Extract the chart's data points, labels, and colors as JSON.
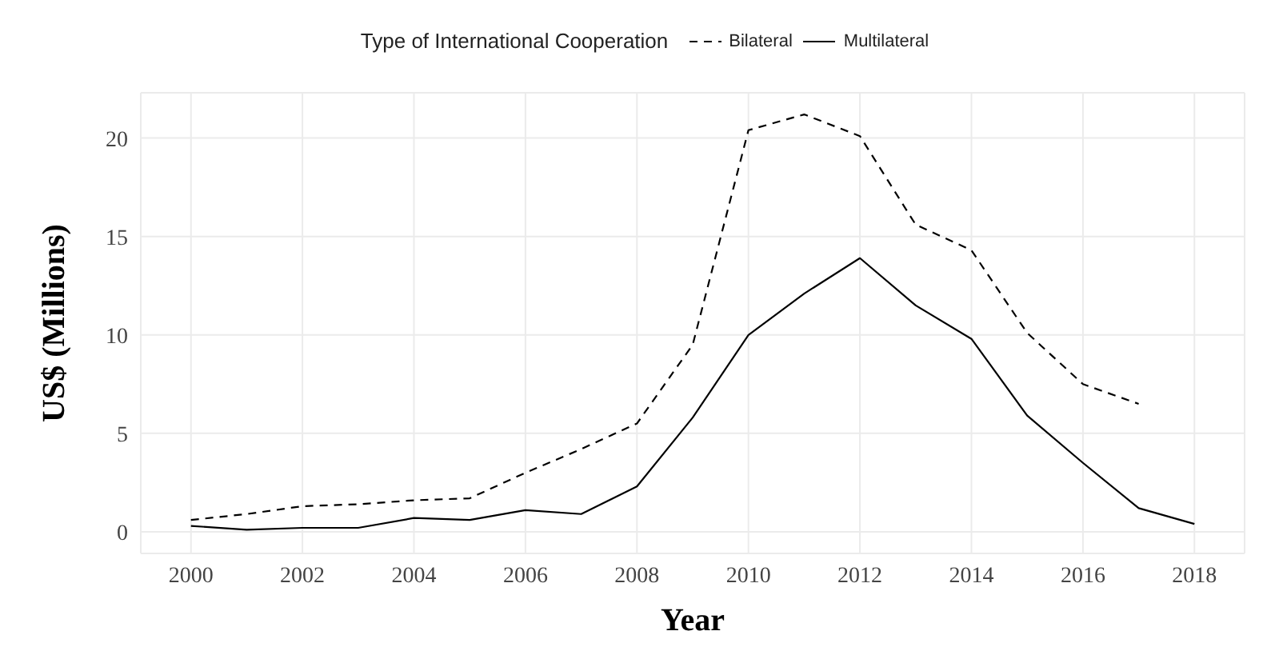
{
  "chart_data": {
    "type": "line",
    "xlabel": "Year",
    "ylabel": "US$ (Millions)",
    "legend_title": "Type of International Cooperation",
    "x": [
      2000,
      2001,
      2002,
      2003,
      2004,
      2005,
      2006,
      2007,
      2008,
      2009,
      2010,
      2011,
      2012,
      2013,
      2014,
      2015,
      2016,
      2017,
      2018
    ],
    "series": [
      {
        "name": "Bilateral",
        "color": "#000000",
        "line_style": "dashed",
        "values": [
          0.6,
          0.9,
          1.3,
          1.4,
          1.6,
          1.7,
          3.0,
          4.2,
          5.5,
          9.5,
          20.4,
          21.2,
          20.1,
          15.6,
          14.3,
          10.1,
          7.5,
          6.5,
          null
        ]
      },
      {
        "name": "Multilateral",
        "color": "#000000",
        "line_style": "solid",
        "values": [
          0.3,
          0.1,
          0.2,
          0.2,
          0.7,
          0.6,
          1.1,
          0.9,
          2.3,
          5.8,
          10.0,
          12.1,
          13.9,
          11.5,
          9.8,
          5.9,
          3.5,
          1.2,
          0.4
        ]
      }
    ],
    "xlim": [
      1999.1,
      2018.9
    ],
    "xticks": [
      2000,
      2002,
      2004,
      2006,
      2008,
      2010,
      2012,
      2014,
      2016,
      2018
    ],
    "ylim": [
      -1.1,
      22.3
    ],
    "yticks": [
      0,
      5,
      10,
      15,
      20
    ],
    "grid": true,
    "legend": "top",
    "marker": "none"
  }
}
